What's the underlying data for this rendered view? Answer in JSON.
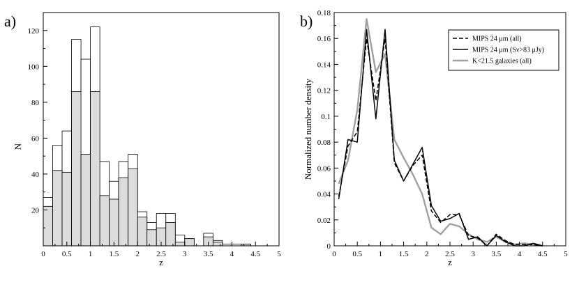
{
  "chart_data": [
    {
      "type": "bar",
      "panel_label": "a)",
      "xlabel": "z",
      "ylabel": "N",
      "xlim": [
        0,
        5
      ],
      "ylim": [
        0,
        130
      ],
      "bin_width": 0.2,
      "bin_left_edges": [
        0.0,
        0.2,
        0.4,
        0.6,
        0.8,
        1.0,
        1.2,
        1.4,
        1.6,
        1.8,
        2.0,
        2.2,
        2.4,
        2.6,
        2.8,
        3.0,
        3.2,
        3.4,
        3.6,
        3.8,
        4.0,
        4.2,
        4.4,
        4.6,
        4.8
      ],
      "series": [
        {
          "values": [
            27,
            56,
            64,
            115,
            104,
            122,
            47,
            36,
            47,
            51,
            19,
            13,
            18,
            18,
            6,
            4,
            0,
            7,
            3,
            1,
            1,
            1,
            0,
            0,
            0
          ],
          "fill": "#ffffff"
        },
        {
          "values": [
            22,
            42,
            41,
            86,
            51,
            86,
            28,
            26,
            38,
            43,
            16,
            9,
            10,
            13,
            2,
            4,
            0,
            5,
            2,
            0,
            0,
            1,
            0,
            0,
            0
          ],
          "fill": "#dcdcdc"
        }
      ],
      "xticks": [
        "0",
        "0.5",
        "1",
        "1.5",
        "2",
        "2.5",
        "3",
        "3.5",
        "4",
        "4.5",
        "5"
      ],
      "yticks": [
        "20",
        "40",
        "60",
        "80",
        "100",
        "120"
      ],
      "grid": false
    },
    {
      "type": "line",
      "panel_label": "b)",
      "xlabel": "z",
      "ylabel": "Normalized number density",
      "xlim": [
        0,
        5
      ],
      "ylim": [
        0,
        0.18
      ],
      "legend_position": "top-right",
      "series": [
        {
          "name": "MIPS 24 μm (all)",
          "color": "#000000",
          "style": "dashed",
          "x": [
            0.1,
            0.3,
            0.5,
            0.7,
            0.9,
            1.1,
            1.3,
            1.5,
            1.7,
            1.9,
            2.1,
            2.3,
            2.5,
            2.7,
            2.9,
            3.1,
            3.3,
            3.5,
            3.7,
            3.9,
            4.1,
            4.3,
            4.5
          ],
          "y": [
            0.038,
            0.077,
            0.088,
            0.16,
            0.112,
            0.16,
            0.064,
            0.05,
            0.062,
            0.07,
            0.027,
            0.018,
            0.024,
            0.024,
            0.008,
            0.006,
            0.0,
            0.009,
            0.004,
            0.001,
            0.001,
            0.001,
            0.0
          ]
        },
        {
          "name": "MIPS 24 μm (Sν>83 μJy)",
          "color": "#000000",
          "style": "solid",
          "x": [
            0.1,
            0.3,
            0.5,
            0.7,
            0.9,
            1.1,
            1.3,
            1.5,
            1.7,
            1.9,
            2.1,
            2.3,
            2.5,
            2.7,
            2.9,
            3.1,
            3.3,
            3.5,
            3.7,
            3.9,
            4.1,
            4.3,
            4.5
          ],
          "y": [
            0.036,
            0.082,
            0.08,
            0.167,
            0.098,
            0.167,
            0.066,
            0.05,
            0.063,
            0.076,
            0.031,
            0.019,
            0.021,
            0.025,
            0.005,
            0.007,
            0.0,
            0.008,
            0.003,
            0.0,
            0.0,
            0.002,
            0.0
          ]
        },
        {
          "name": "K<21.5 galaxies (all)",
          "color": "#a0a0a0",
          "style": "solid",
          "x": [
            0.1,
            0.3,
            0.5,
            0.7,
            0.9,
            1.1,
            1.3,
            1.5,
            1.7,
            1.9,
            2.1,
            2.3,
            2.5,
            2.7,
            2.9,
            3.1,
            3.3,
            3.5,
            3.7,
            3.9,
            4.1,
            4.3,
            4.5
          ],
          "y": [
            0.048,
            0.066,
            0.105,
            0.175,
            0.134,
            0.148,
            0.082,
            0.068,
            0.055,
            0.04,
            0.014,
            0.009,
            0.017,
            0.015,
            0.009,
            0.005,
            0.003,
            0.007,
            0.003,
            0.001,
            0.002,
            0.001,
            0.0
          ]
        }
      ],
      "xticks": [
        "0",
        "0.5",
        "1",
        "1.5",
        "2",
        "2.5",
        "3",
        "3.5",
        "4",
        "4.5",
        "5"
      ],
      "yticks": [
        "0",
        "0.02",
        "0.04",
        "0.06",
        "0.08",
        "0.1",
        "0.12",
        "0.14",
        "0.16",
        "0.18"
      ],
      "grid": false
    }
  ]
}
